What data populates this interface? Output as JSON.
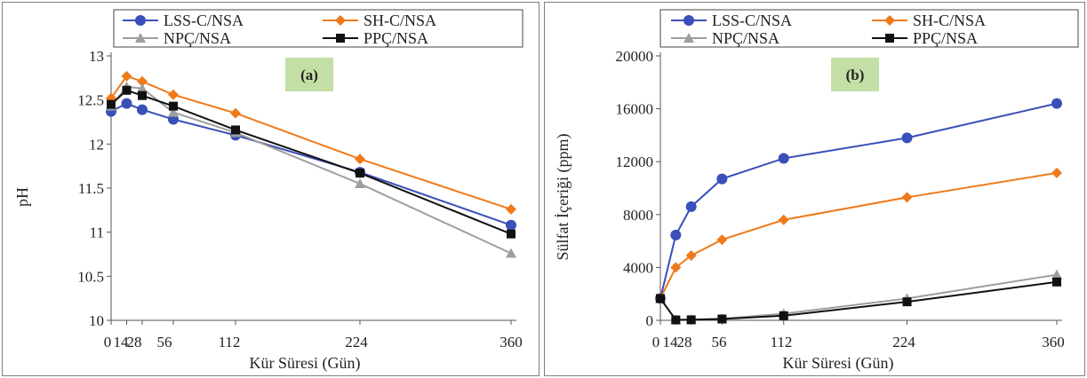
{
  "chart_data": [
    {
      "type": "line",
      "panel_label": "(a)",
      "xlabel": "Kür Süresi (Gün)",
      "ylabel": "pH",
      "x": [
        0,
        14,
        28,
        56,
        112,
        224,
        360
      ],
      "x_ticks": [
        0,
        14,
        28,
        56,
        112,
        224,
        360
      ],
      "x_tick_labels": [
        "0",
        "14",
        "28",
        "56",
        "112",
        "224",
        "360"
      ],
      "ylim": [
        10,
        13
      ],
      "y_ticks": [
        10,
        10.5,
        11,
        11.5,
        12,
        12.5,
        13
      ],
      "y_tick_labels": [
        "10",
        "10.5",
        "11",
        "11.5",
        "12",
        "12.5",
        "13"
      ],
      "legend_position": "top",
      "series": [
        {
          "name": "LSS-C/NSA",
          "color": "#3a4fb8",
          "marker": "circle",
          "values": [
            12.37,
            12.46,
            12.39,
            12.28,
            12.1,
            11.68,
            11.08
          ]
        },
        {
          "name": "SH-C/NSA",
          "color": "#ef7a1a",
          "marker": "diamond",
          "values": [
            12.52,
            12.77,
            12.71,
            12.56,
            12.35,
            11.83,
            11.26
          ]
        },
        {
          "name": "NPÇ/NSA",
          "color": "#9e9e9e",
          "marker": "triangle",
          "values": [
            12.43,
            12.65,
            12.63,
            12.36,
            12.13,
            11.55,
            10.76
          ]
        },
        {
          "name": "PPÇ/NSA",
          "color": "#111111",
          "marker": "square",
          "values": [
            12.45,
            12.61,
            12.55,
            12.43,
            12.16,
            11.67,
            10.98
          ]
        }
      ]
    },
    {
      "type": "line",
      "panel_label": "(b)",
      "xlabel": "Kür Süresi (Gün)",
      "ylabel": "Sülfat İçeriği (ppm)",
      "x": [
        0,
        14,
        28,
        56,
        112,
        224,
        360
      ],
      "x_ticks": [
        0,
        14,
        28,
        56,
        112,
        224,
        360
      ],
      "x_tick_labels": [
        "0",
        "14",
        "28",
        "56",
        "112",
        "224",
        "360"
      ],
      "ylim": [
        0,
        20000
      ],
      "y_ticks": [
        0,
        4000,
        8000,
        12000,
        16000,
        20000
      ],
      "y_tick_labels": [
        "0",
        "4000",
        "8000",
        "12000",
        "16000",
        "20000"
      ],
      "legend_position": "top",
      "series": [
        {
          "name": "LSS-C/NSA",
          "color": "#3a4fb8",
          "marker": "circle",
          "values": [
            1650,
            6450,
            8600,
            10700,
            12250,
            13800,
            16400
          ]
        },
        {
          "name": "SH-C/NSA",
          "color": "#ef7a1a",
          "marker": "diamond",
          "values": [
            1650,
            4000,
            4900,
            6100,
            7600,
            9300,
            11150
          ]
        },
        {
          "name": "NPÇ/NSA",
          "color": "#9e9e9e",
          "marker": "triangle",
          "values": [
            1650,
            50,
            60,
            120,
            500,
            1650,
            3450
          ]
        },
        {
          "name": "PPÇ/NSA",
          "color": "#111111",
          "marker": "square",
          "values": [
            1650,
            30,
            40,
            100,
            350,
            1400,
            2900
          ]
        }
      ]
    }
  ]
}
